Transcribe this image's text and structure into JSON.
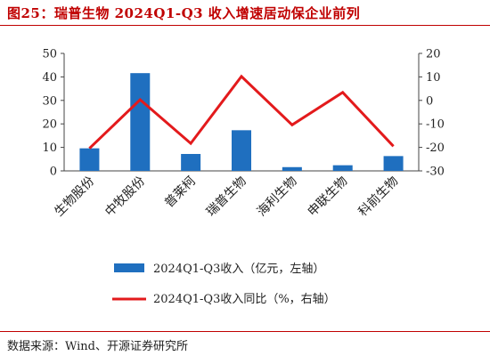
{
  "title": "图25：瑞普生物 2024Q1-Q3 收入增速居动保企业前列",
  "source": "数据来源：Wind、开源证券研究所",
  "colors": {
    "bar": "#1f6fbf",
    "line": "#e31a1c",
    "title": "#c00000"
  },
  "chart_data": {
    "type": "bar",
    "categories": [
      "生物股份",
      "中牧股份",
      "普莱柯",
      "瑞普生物",
      "海利生物",
      "申联生物",
      "科前生物"
    ],
    "series": [
      {
        "name": "2024Q1-Q3收入（亿元，左轴）",
        "type": "bar",
        "axis": "left",
        "values": [
          9.6,
          41.6,
          7.2,
          17.3,
          1.6,
          2.4,
          6.3
        ]
      },
      {
        "name": "2024Q1-Q3收入同比（%，右轴）",
        "type": "line",
        "axis": "right",
        "values": [
          -20.4,
          0.3,
          -18.3,
          10.2,
          -10.4,
          3.4,
          -19.5
        ]
      }
    ],
    "y_left": {
      "ylim": [
        0,
        50
      ],
      "ticks": [
        0,
        10,
        20,
        30,
        40,
        50
      ]
    },
    "y_right": {
      "ylim": [
        -30,
        20
      ],
      "ticks": [
        -30,
        -20,
        -10,
        0,
        10,
        20
      ]
    },
    "legend_position": "bottom",
    "grid": false
  }
}
